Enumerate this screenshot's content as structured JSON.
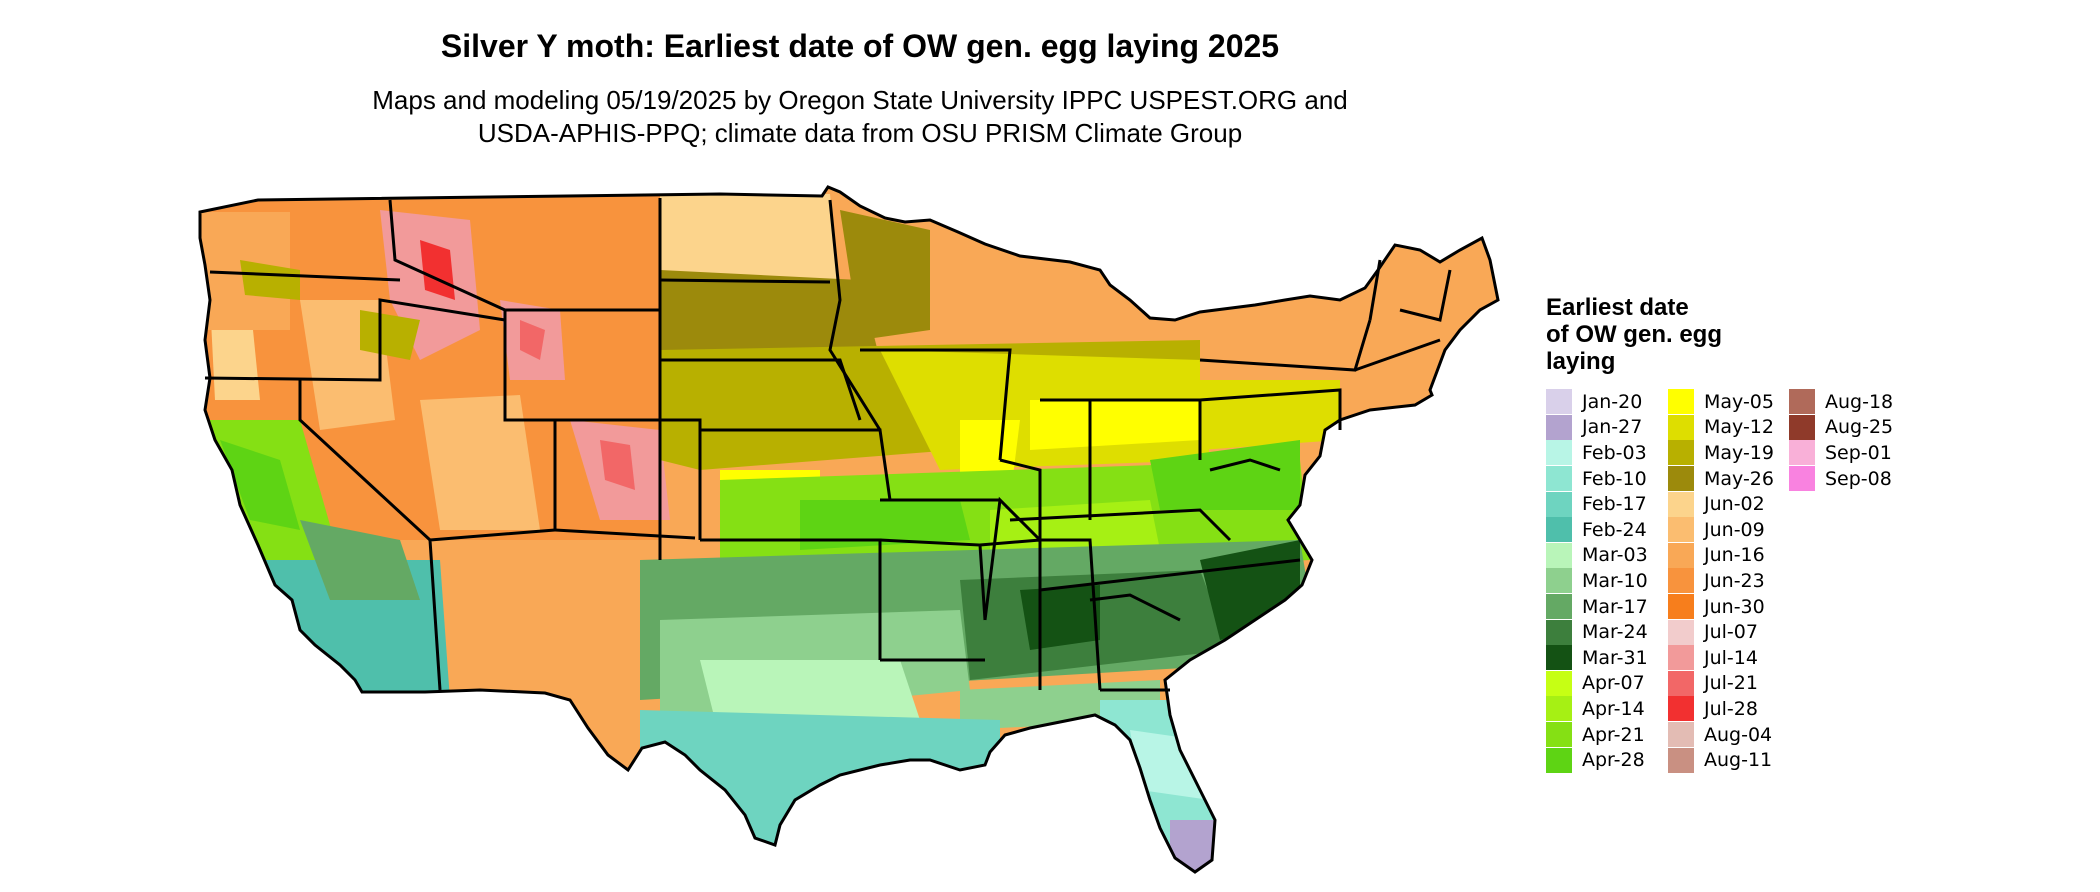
{
  "title": "Silver Y moth: Earliest date of OW gen. egg laying 2025",
  "subtitle_line1": "Maps and modeling 05/19/2025 by Oregon State University IPPC USPEST.ORG and",
  "subtitle_line2": "USDA-APHIS-PPQ; climate data from OSU PRISM Climate Group",
  "legend": {
    "title_line1": "Earliest date",
    "title_line2": "of OW gen. egg",
    "title_line3": "laying",
    "columns": [
      [
        {
          "label": "Jan-20",
          "color": "#d9d0ea"
        },
        {
          "label": "Jan-27",
          "color": "#b3a3cf"
        },
        {
          "label": "Feb-03",
          "color": "#b8f5e6"
        },
        {
          "label": "Feb-10",
          "color": "#8ee6d2"
        },
        {
          "label": "Feb-17",
          "color": "#6ed4c0"
        },
        {
          "label": "Feb-24",
          "color": "#4fbfab"
        },
        {
          "label": "Mar-03",
          "color": "#b9f5b9"
        },
        {
          "label": "Mar-10",
          "color": "#8ed08e"
        },
        {
          "label": "Mar-17",
          "color": "#64a964"
        },
        {
          "label": "Mar-24",
          "color": "#3d7f3d"
        },
        {
          "label": "Mar-31",
          "color": "#145214"
        },
        {
          "label": "Apr-07",
          "color": "#c6ff14"
        },
        {
          "label": "Apr-14",
          "color": "#a6f014"
        },
        {
          "label": "Apr-21",
          "color": "#85e014"
        },
        {
          "label": "Apr-28",
          "color": "#5ed414"
        }
      ],
      [
        {
          "label": "May-05",
          "color": "#ffff00"
        },
        {
          "label": "May-12",
          "color": "#dede00"
        },
        {
          "label": "May-19",
          "color": "#b8b000"
        },
        {
          "label": "May-26",
          "color": "#9c8a0c"
        },
        {
          "label": "Jun-02",
          "color": "#fcd48c"
        },
        {
          "label": "Jun-09",
          "color": "#fbbd70"
        },
        {
          "label": "Jun-16",
          "color": "#f9a856"
        },
        {
          "label": "Jun-23",
          "color": "#f8933d"
        },
        {
          "label": "Jun-30",
          "color": "#f77e1c"
        },
        {
          "label": "Jul-07",
          "color": "#f2cccc"
        },
        {
          "label": "Jul-14",
          "color": "#f29a9a"
        },
        {
          "label": "Jul-21",
          "color": "#f26767"
        },
        {
          "label": "Jul-28",
          "color": "#f23030"
        },
        {
          "label": "Aug-04",
          "color": "#e3bcb4"
        },
        {
          "label": "Aug-11",
          "color": "#c99082"
        }
      ],
      [
        {
          "label": "Aug-18",
          "color": "#b06a5a"
        },
        {
          "label": "Aug-25",
          "color": "#8f3a2a"
        },
        {
          "label": "Sep-01",
          "color": "#f9b0d8"
        },
        {
          "label": "Sep-08",
          "color": "#f982e0"
        }
      ]
    ]
  }
}
